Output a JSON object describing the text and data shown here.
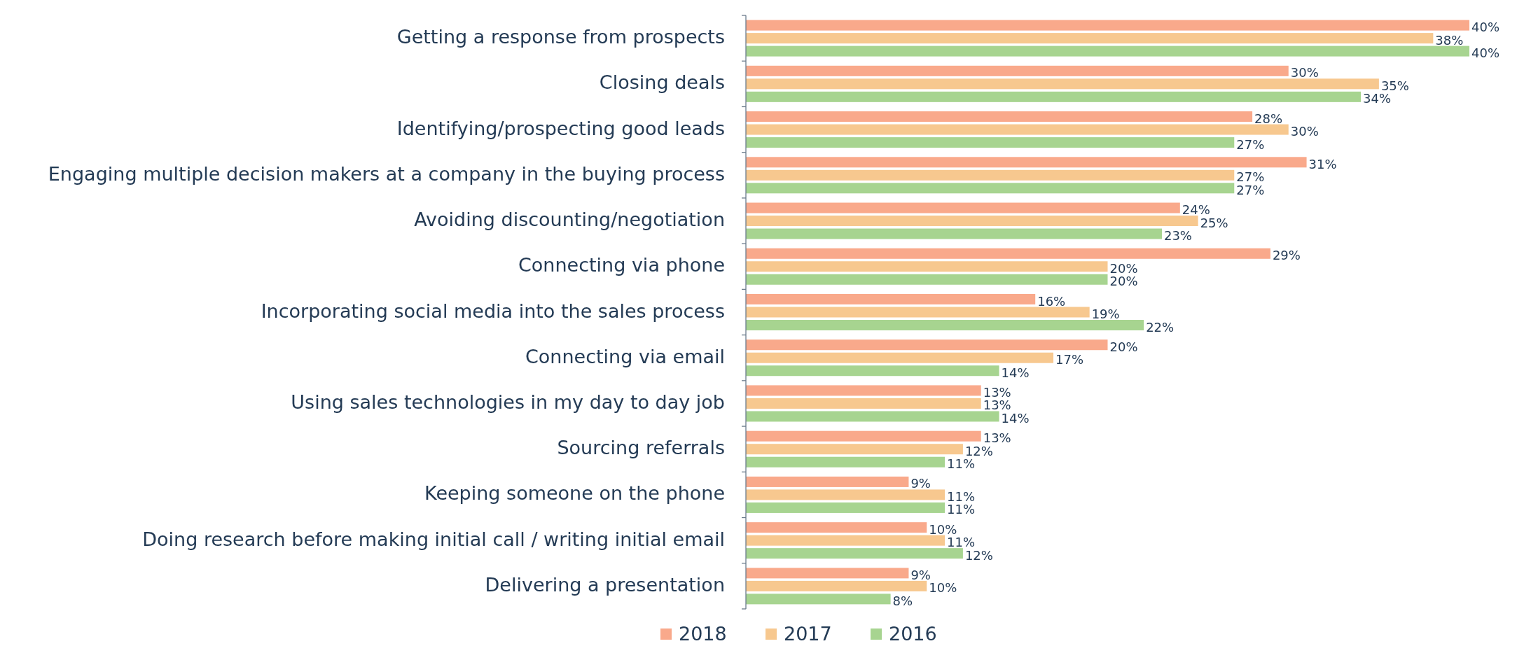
{
  "chart_data": {
    "type": "bar",
    "orientation": "horizontal",
    "legend": "bottom",
    "categories": [
      "Getting a response from prospects",
      "Closing deals",
      "Identifying/prospecting good leads",
      "Engaging multiple decision makers at a company in the buying process",
      "Avoiding discounting/negotiation",
      "Connecting via phone",
      "Incorporating social media into the sales process",
      "Connecting via email",
      "Using sales technologies in my day to day job",
      "Sourcing referrals",
      "Keeping someone on the phone",
      "Doing research before making initial call / writing initial email",
      "Delivering a presentation"
    ],
    "series": [
      {
        "name": "2018",
        "color": "#f9a98b",
        "values": [
          40,
          30,
          28,
          31,
          24,
          29,
          16,
          20,
          13,
          13,
          9,
          10,
          9
        ],
        "value_labels": [
          "40%",
          "30%",
          "28%",
          "31%",
          "24%",
          "29%",
          "16%",
          "20%",
          "13%",
          "13%",
          "9%",
          "10%",
          "9%"
        ]
      },
      {
        "name": "2017",
        "color": "#f7c88f",
        "values": [
          38,
          35,
          30,
          27,
          25,
          20,
          19,
          17,
          13,
          12,
          11,
          11,
          10
        ],
        "value_labels": [
          "38%",
          "35%",
          "30%",
          "27%",
          "25%",
          "20%",
          "19%",
          "17%",
          "13%",
          "12%",
          "11%",
          "11%",
          "10%"
        ]
      },
      {
        "name": "2016",
        "color": "#a7d490",
        "values": [
          40,
          34,
          27,
          27,
          23,
          20,
          22,
          14,
          14,
          11,
          11,
          12,
          8
        ],
        "value_labels": [
          "40%",
          "34%",
          "27%",
          "27%",
          "23%",
          "20%",
          "22%",
          "14%",
          "14%",
          "11%",
          "11%",
          "12%",
          "8%"
        ]
      }
    ]
  }
}
